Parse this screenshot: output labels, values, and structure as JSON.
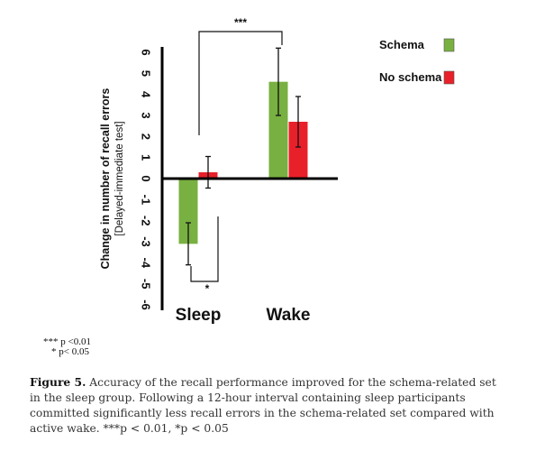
{
  "chart_data": {
    "type": "bar",
    "categories": [
      "Sleep",
      "Wake"
    ],
    "series": [
      {
        "name": "Schema",
        "color": "#78b041",
        "values": [
          -3.1,
          4.6
        ],
        "error": [
          1.0,
          1.6
        ]
      },
      {
        "name": "No schema",
        "color": "#e8202a",
        "values": [
          0.3,
          2.7
        ],
        "error": [
          0.75,
          1.2
        ]
      }
    ],
    "ylabel": "Change in number of recall errors",
    "ylabel_sub": "[Delayed-immediate test]",
    "ylim": [
      -6,
      6
    ],
    "yticks": [
      "6",
      "5",
      "4",
      "3",
      "2",
      "1",
      "0",
      "-1",
      "-2",
      "-3",
      "-4",
      "-5",
      "-6"
    ],
    "legend_position": "top-right",
    "annotations": [
      {
        "text": "***",
        "between": "Wake Schema vs Sleep Schema"
      },
      {
        "text": "*",
        "between": "Sleep Schema vs Sleep No schema"
      }
    ]
  },
  "significance_key": [
    "*** p <0.01",
    "* p< 0.05"
  ],
  "caption": {
    "label": "Figure 5.",
    "text": "Accuracy of the recall performance improved for the schema-related set in the sleep group. Following a 12-hour interval containing sleep participants committed significantly less recall errors in the schema-related set compared with active wake. ***p < 0.01, *p < 0.05"
  }
}
